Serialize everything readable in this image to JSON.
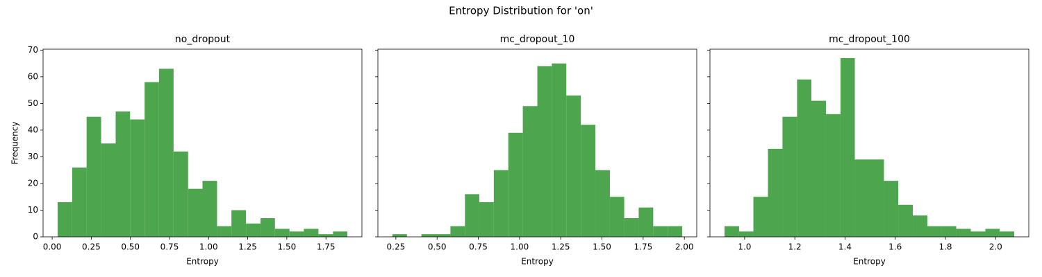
{
  "title": "Entropy Distribution for 'on'",
  "chart_data": [
    {
      "type": "histogram",
      "title": "no_dropout",
      "xlabel": "Entropy",
      "ylabel": "Frequency",
      "color": "#4da64d",
      "bins": [
        0.035,
        0.128,
        0.22,
        0.313,
        0.406,
        0.498,
        0.591,
        0.683,
        0.776,
        0.869,
        0.961,
        1.054,
        1.146,
        1.239,
        1.332,
        1.424,
        1.517,
        1.609,
        1.702,
        1.795,
        1.887
      ],
      "values": [
        13,
        26,
        45,
        35,
        47,
        44,
        58,
        63,
        32,
        18,
        21,
        4,
        10,
        5,
        7,
        3,
        2,
        3,
        1,
        2
      ],
      "xlim": [
        -0.058,
        1.98
      ],
      "xticks": [
        {
          "value": 0,
          "label": "0.00"
        },
        {
          "value": 0.25,
          "label": "0.25"
        },
        {
          "value": 0.5,
          "label": "0.50"
        },
        {
          "value": 0.75,
          "label": "0.75"
        },
        {
          "value": 1,
          "label": "1.00"
        },
        {
          "value": 1.25,
          "label": "1.25"
        },
        {
          "value": 1.5,
          "label": "1.50"
        },
        {
          "value": 1.75,
          "label": "1.75"
        }
      ],
      "ylim": [
        0,
        70.35
      ],
      "yticks": [
        0,
        10,
        20,
        30,
        40,
        50,
        60,
        70
      ]
    },
    {
      "type": "histogram",
      "title": "mc_dropout_10",
      "xlabel": "Entropy",
      "color": "#4da64d",
      "bins": [
        0.229,
        0.317,
        0.405,
        0.493,
        0.581,
        0.669,
        0.756,
        0.844,
        0.932,
        1.02,
        1.108,
        1.196,
        1.284,
        1.372,
        1.46,
        1.548,
        1.635,
        1.723,
        1.811,
        1.899,
        1.987
      ],
      "values": [
        1,
        0,
        1,
        1,
        4,
        16,
        13,
        25,
        39,
        49,
        64,
        65,
        53,
        42,
        25,
        15,
        7,
        11,
        4,
        4
      ],
      "xlim": [
        0.141,
        2.075
      ],
      "xticks": [
        {
          "value": 0.25,
          "label": "0.25"
        },
        {
          "value": 0.5,
          "label": "0.50"
        },
        {
          "value": 0.75,
          "label": "0.75"
        },
        {
          "value": 1,
          "label": "1.00"
        },
        {
          "value": 1.25,
          "label": "1.25"
        },
        {
          "value": 1.5,
          "label": "1.50"
        },
        {
          "value": 1.75,
          "label": "1.75"
        },
        {
          "value": 2,
          "label": "2.00"
        }
      ],
      "ylim": [
        0,
        70.35
      ]
    },
    {
      "type": "histogram",
      "title": "mc_dropout_100",
      "xlabel": "Entropy",
      "color": "#4da64d",
      "bins": [
        0.92,
        0.978,
        1.035,
        1.093,
        1.151,
        1.209,
        1.266,
        1.324,
        1.382,
        1.439,
        1.497,
        1.555,
        1.612,
        1.67,
        1.728,
        1.786,
        1.843,
        1.901,
        1.959,
        2.016,
        2.074
      ],
      "values": [
        4,
        2,
        15,
        33,
        45,
        59,
        51,
        46,
        67,
        29,
        29,
        21,
        12,
        8,
        4,
        4,
        3,
        2,
        3,
        2
      ],
      "xlim": [
        0.862,
        2.132
      ],
      "xticks": [
        {
          "value": 1,
          "label": "1.0"
        },
        {
          "value": 1.2,
          "label": "1.2"
        },
        {
          "value": 1.4,
          "label": "1.4"
        },
        {
          "value": 1.6,
          "label": "1.6"
        },
        {
          "value": 1.8,
          "label": "1.8"
        },
        {
          "value": 2,
          "label": "2.0"
        }
      ],
      "ylim": [
        0,
        70.35
      ]
    }
  ]
}
